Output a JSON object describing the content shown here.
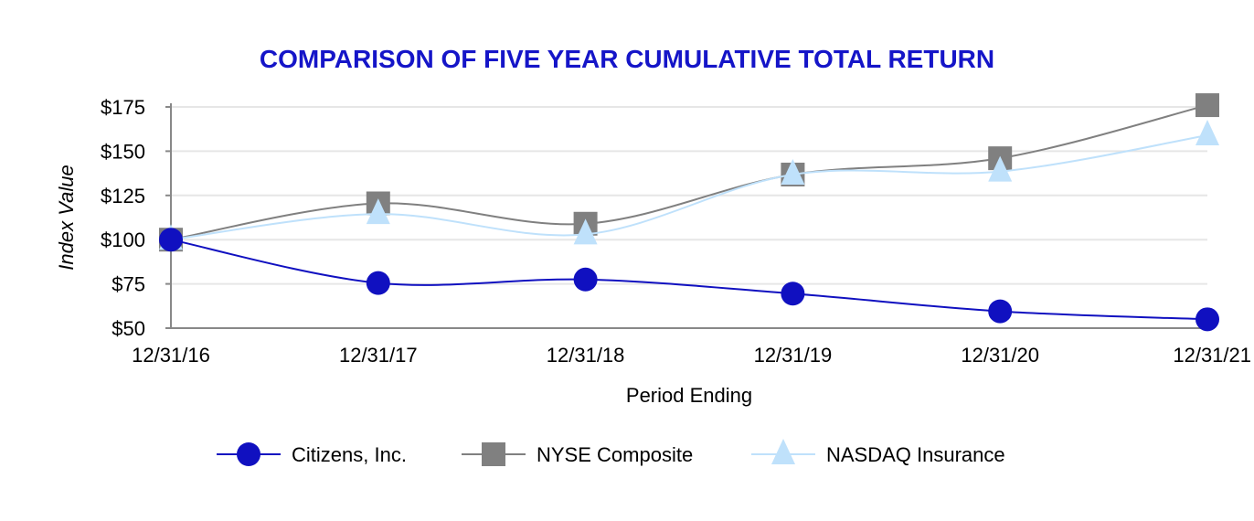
{
  "chart_data": {
    "type": "line",
    "title": "COMPARISON OF FIVE YEAR CUMULATIVE TOTAL RETURN",
    "xlabel": "Period Ending",
    "ylabel": "Index Value",
    "categories": [
      "12/31/16",
      "12/31/17",
      "12/31/18",
      "12/31/19",
      "12/31/20",
      "12/31/21"
    ],
    "yticks": [
      50,
      75,
      100,
      125,
      150,
      175
    ],
    "ytick_labels": [
      "$50",
      "$75",
      "$100",
      "$125",
      "$150",
      "$175"
    ],
    "ylim": [
      50,
      175
    ],
    "grid": true,
    "legend_position": "bottom",
    "series": [
      {
        "name": "Citizens, Inc.",
        "color": "#1010c0",
        "marker": "circle",
        "values": [
          100,
          75.5,
          77.5,
          69.5,
          59.5,
          55
        ]
      },
      {
        "name": "NYSE Composite",
        "color": "#808080",
        "marker": "square",
        "values": [
          100,
          120.5,
          109,
          136.8,
          146,
          176
        ]
      },
      {
        "name": "NASDAQ Insurance",
        "color": "#bfe1fb",
        "marker": "triangle",
        "values": [
          100,
          114.5,
          103,
          136.8,
          138.5,
          159
        ]
      }
    ]
  }
}
